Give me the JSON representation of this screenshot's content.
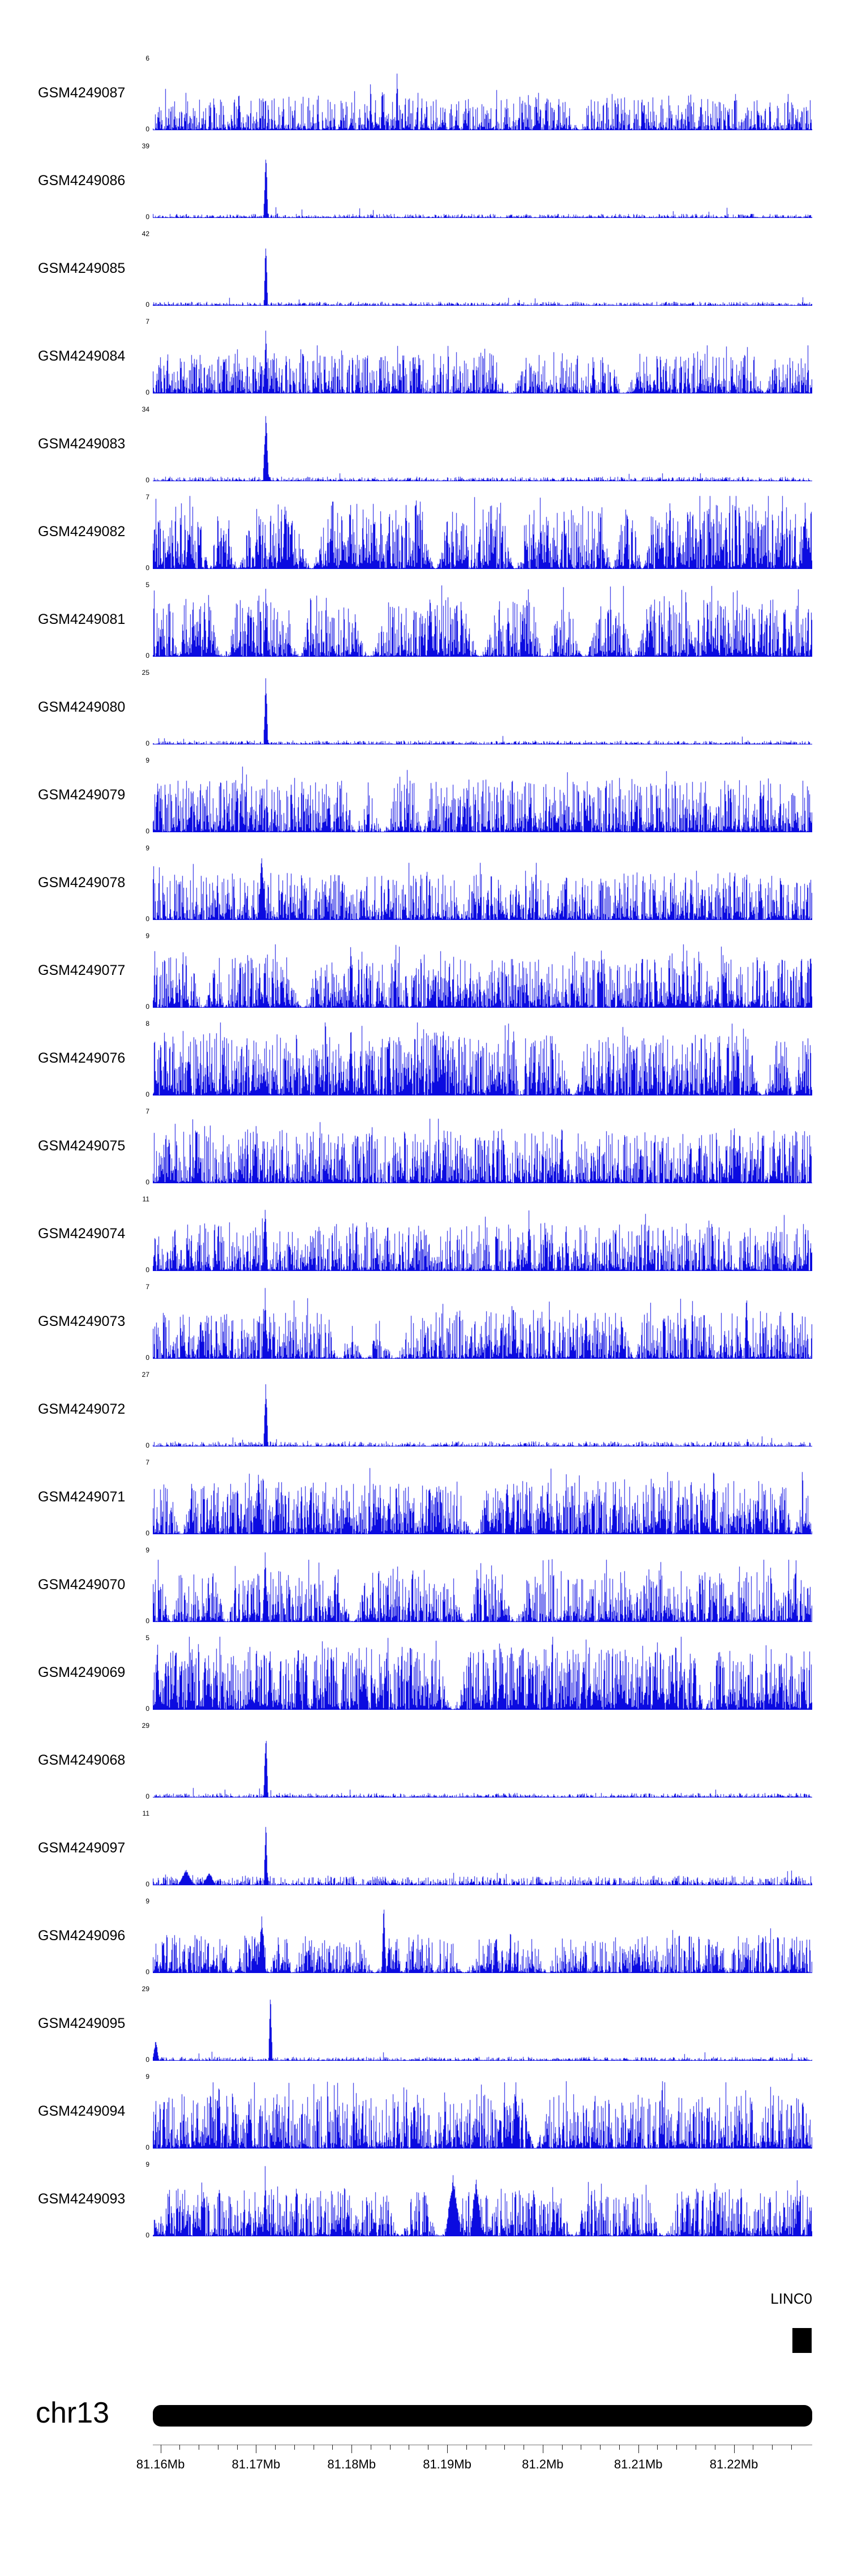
{
  "chart_data": {
    "type": "area",
    "title": "",
    "chromosome": "chr13",
    "gene": {
      "label": "LINC0"
    },
    "signal_color": "#0b0be0",
    "x_domain_mb": [
      81.1592,
      81.2282
    ],
    "x_axis": {
      "unit": "Mb",
      "minor_step_mb": 0.002,
      "ticks": [
        {
          "pos": 81.16,
          "label": "81.16Mb"
        },
        {
          "pos": 81.17,
          "label": "81.17Mb"
        },
        {
          "pos": 81.18,
          "label": "81.18Mb"
        },
        {
          "pos": 81.19,
          "label": "81.19Mb"
        },
        {
          "pos": 81.2,
          "label": "81.2Mb"
        },
        {
          "pos": 81.21,
          "label": "81.21Mb"
        },
        {
          "pos": 81.22,
          "label": "81.22Mb"
        }
      ]
    },
    "tracks": [
      {
        "name": "GSM4249087",
        "ymin": 0,
        "ymax": 6,
        "style": "dense",
        "noise": 0.5,
        "sharp": 2.6,
        "spike": 0.015,
        "dip": 0.002,
        "peaks": [
          {
            "pos": 0.37,
            "h": 0.95,
            "w": 0.002
          },
          {
            "pos": 0.33,
            "h": 0.8,
            "w": 0.002
          },
          {
            "pos": 0.13,
            "h": 0.6,
            "w": 0.003
          }
        ]
      },
      {
        "name": "GSM4249086",
        "ymin": 0,
        "ymax": 39,
        "style": "peak",
        "noise": 0.055,
        "sharp": 3.0,
        "spike": 0.006,
        "spikeh": 0.12,
        "peaks": [
          {
            "pos": 0.171,
            "h": 1,
            "w": 0.0035
          }
        ]
      },
      {
        "name": "GSM4249085",
        "ymin": 0,
        "ymax": 42,
        "style": "peak",
        "noise": 0.05,
        "sharp": 3.0,
        "spike": 0.005,
        "spikeh": 0.1,
        "peaks": [
          {
            "pos": 0.171,
            "h": 1,
            "w": 0.003
          }
        ]
      },
      {
        "name": "GSM4249084",
        "ymin": 0,
        "ymax": 7,
        "style": "dense",
        "noise": 0.6,
        "sharp": 2.2,
        "spike": 0.02,
        "dip": 0.002,
        "peaks": [
          {
            "pos": 0.171,
            "h": 1,
            "w": 0.003
          }
        ]
      },
      {
        "name": "GSM4249083",
        "ymin": 0,
        "ymax": 34,
        "style": "peak",
        "noise": 0.06,
        "sharp": 3.0,
        "spike": 0.006,
        "spikeh": 0.1,
        "peaks": [
          {
            "pos": 0.171,
            "h": 1,
            "w": 0.0045
          }
        ]
      },
      {
        "name": "GSM4249082",
        "ymin": 0,
        "ymax": 7,
        "style": "dense",
        "noise": 0.97,
        "sharp": 1.6,
        "spike": 0.03,
        "dip": 0.006,
        "peaks": [
          {
            "pos": 0.2,
            "h": 1,
            "w": 0.004
          }
        ]
      },
      {
        "name": "GSM4249081",
        "ymin": 0,
        "ymax": 5,
        "style": "dense",
        "noise": 0.85,
        "sharp": 1.9,
        "spike": 0.025,
        "dip": 0.0035,
        "peaks": [
          {
            "pos": 0.171,
            "h": 1,
            "w": 0.003
          },
          {
            "pos": 0.42,
            "h": 1,
            "w": 0.003
          }
        ]
      },
      {
        "name": "GSM4249080",
        "ymin": 0,
        "ymax": 25,
        "style": "peak",
        "noise": 0.05,
        "sharp": 3.0,
        "spike": 0.005,
        "spikeh": 0.1,
        "peaks": [
          {
            "pos": 0.171,
            "h": 1,
            "w": 0.0035
          }
        ]
      },
      {
        "name": "GSM4249079",
        "ymin": 0,
        "ymax": 9,
        "style": "dense",
        "noise": 0.8,
        "sharp": 2.0,
        "spike": 0.025,
        "dip": 0.0025,
        "peaks": []
      },
      {
        "name": "GSM4249078",
        "ymin": 0,
        "ymax": 9,
        "style": "dense",
        "noise": 0.7,
        "sharp": 2.2,
        "spike": 0.02,
        "dip": 0.0025,
        "peaks": [
          {
            "pos": 0.165,
            "h": 0.95,
            "w": 0.006
          }
        ]
      },
      {
        "name": "GSM4249077",
        "ymin": 0,
        "ymax": 9,
        "style": "dense",
        "noise": 0.78,
        "sharp": 2.0,
        "spike": 0.025,
        "dip": 0.0025,
        "peaks": [
          {
            "pos": 0.3,
            "h": 1,
            "w": 0.003
          },
          {
            "pos": 0.68,
            "h": 0.9,
            "w": 0.003
          }
        ]
      },
      {
        "name": "GSM4249076",
        "ymin": 0,
        "ymax": 8,
        "style": "dense",
        "noise": 0.9,
        "sharp": 1.7,
        "spike": 0.03,
        "dip": 0.004,
        "peaks": [
          {
            "pos": 0.3,
            "h": 1,
            "w": 0.004
          },
          {
            "pos": 0.44,
            "h": 1,
            "w": 0.003
          }
        ]
      },
      {
        "name": "GSM4249075",
        "ymin": 0,
        "ymax": 7,
        "style": "dense",
        "noise": 0.8,
        "sharp": 2.0,
        "spike": 0.025,
        "dip": 0.003,
        "peaks": [
          {
            "pos": 0.62,
            "h": 1,
            "w": 0.003
          }
        ]
      },
      {
        "name": "GSM4249074",
        "ymin": 0,
        "ymax": 11,
        "style": "dense",
        "noise": 0.7,
        "sharp": 2.3,
        "spike": 0.02,
        "dip": 0.002,
        "peaks": [
          {
            "pos": 0.17,
            "h": 1,
            "w": 0.004
          },
          {
            "pos": 0.57,
            "h": 0.9,
            "w": 0.003
          }
        ]
      },
      {
        "name": "GSM4249073",
        "ymin": 0,
        "ymax": 7,
        "style": "dense",
        "noise": 0.72,
        "sharp": 2.2,
        "spike": 0.02,
        "dip": 0.003,
        "peaks": [
          {
            "pos": 0.17,
            "h": 1,
            "w": 0.003
          },
          {
            "pos": 0.9,
            "h": 1,
            "w": 0.003
          }
        ]
      },
      {
        "name": "GSM4249072",
        "ymin": 0,
        "ymax": 27,
        "style": "peak",
        "noise": 0.07,
        "sharp": 3.0,
        "spike": 0.006,
        "spikeh": 0.12,
        "peaks": [
          {
            "pos": 0.171,
            "h": 1,
            "w": 0.0035
          }
        ]
      },
      {
        "name": "GSM4249071",
        "ymin": 0,
        "ymax": 7,
        "style": "dense",
        "noise": 0.8,
        "sharp": 1.9,
        "spike": 0.03,
        "dip": 0.003,
        "peaks": [
          {
            "pos": 0.16,
            "h": 1,
            "w": 0.004
          },
          {
            "pos": 0.85,
            "h": 1,
            "w": 0.004
          }
        ]
      },
      {
        "name": "GSM4249070",
        "ymin": 0,
        "ymax": 9,
        "style": "dense",
        "noise": 0.75,
        "sharp": 2.1,
        "spike": 0.025,
        "dip": 0.003,
        "peaks": [
          {
            "pos": 0.17,
            "h": 1,
            "w": 0.004
          }
        ]
      },
      {
        "name": "GSM4249069",
        "ymin": 0,
        "ymax": 5,
        "style": "dense",
        "noise": 0.95,
        "sharp": 1.6,
        "spike": 0.035,
        "dip": 0.004,
        "peaks": [
          {
            "pos": 0.22,
            "h": 1,
            "w": 0.004
          }
        ]
      },
      {
        "name": "GSM4249068",
        "ymin": 0,
        "ymax": 29,
        "style": "peak",
        "noise": 0.06,
        "sharp": 3.0,
        "spike": 0.005,
        "spikeh": 0.11,
        "peaks": [
          {
            "pos": 0.171,
            "h": 1,
            "w": 0.0035
          }
        ]
      },
      {
        "name": "GSM4249097",
        "ymin": 0,
        "ymax": 11,
        "style": "peak",
        "noise": 0.13,
        "sharp": 2.8,
        "spike": 0.01,
        "spikeh": 0.2,
        "peaks": [
          {
            "pos": 0.171,
            "h": 1,
            "w": 0.003
          },
          {
            "pos": 0.05,
            "h": 0.22,
            "w": 0.012
          },
          {
            "pos": 0.085,
            "h": 0.18,
            "w": 0.01
          }
        ]
      },
      {
        "name": "GSM4249096",
        "ymin": 0,
        "ymax": 9,
        "style": "dense",
        "noise": 0.55,
        "sharp": 2.0,
        "spike": 0.02,
        "dip": 0.006,
        "peaks": [
          {
            "pos": 0.165,
            "h": 0.85,
            "w": 0.006
          },
          {
            "pos": 0.35,
            "h": 1,
            "w": 0.0035
          },
          {
            "pos": 0.52,
            "h": 0.6,
            "w": 0.004
          }
        ]
      },
      {
        "name": "GSM4249095",
        "ymin": 0,
        "ymax": 29,
        "style": "peak",
        "noise": 0.05,
        "sharp": 3.0,
        "spike": 0.004,
        "spikeh": 0.1,
        "peaks": [
          {
            "pos": 0.178,
            "h": 1,
            "w": 0.003
          },
          {
            "pos": 0.004,
            "h": 0.3,
            "w": 0.005
          }
        ]
      },
      {
        "name": "GSM4249094",
        "ymin": 0,
        "ymax": 9,
        "style": "dense",
        "noise": 0.82,
        "sharp": 1.9,
        "spike": 0.03,
        "dip": 0.003,
        "peaks": [
          {
            "pos": 0.1,
            "h": 1,
            "w": 0.003
          },
          {
            "pos": 0.55,
            "h": 1,
            "w": 0.004
          }
        ]
      },
      {
        "name": "GSM4249093",
        "ymin": 0,
        "ymax": 9,
        "style": "dense",
        "noise": 0.7,
        "sharp": 2.1,
        "spike": 0.02,
        "dip": 0.004,
        "peaks": [
          {
            "pos": 0.17,
            "h": 1,
            "w": 0.003
          },
          {
            "pos": 0.455,
            "h": 0.9,
            "w": 0.012
          },
          {
            "pos": 0.49,
            "h": 0.85,
            "w": 0.009
          }
        ]
      }
    ]
  }
}
